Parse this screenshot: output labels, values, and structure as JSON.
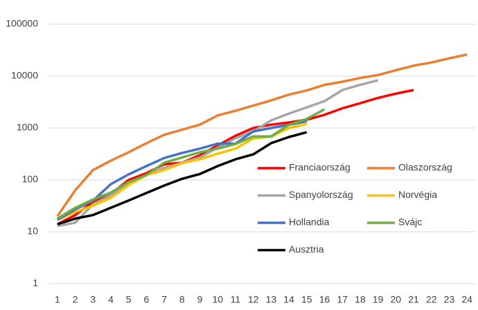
{
  "chart_data": {
    "type": "line",
    "categories": [
      "1",
      "2",
      "3",
      "4",
      "5",
      "6",
      "7",
      "8",
      "9",
      "10",
      "11",
      "12",
      "13",
      "14",
      "15",
      "16",
      "17",
      "18",
      "19",
      "20",
      "21",
      "22",
      "23",
      "24"
    ],
    "ylim": [
      1,
      100000
    ],
    "yticks": [
      1,
      10,
      100,
      1000,
      10000,
      100000
    ],
    "log_scale": true,
    "grid": true,
    "legend": "right",
    "series": [
      {
        "name": "Franciaország",
        "color": "#ff0000",
        "values": [
          14,
          21,
          38,
          54,
          100,
          135,
          200,
          215,
          300,
          460,
          710,
          1000,
          1160,
          1280,
          1450,
          1800,
          2400,
          3000,
          3800,
          4600,
          5400,
          null,
          null,
          null
        ]
      },
      {
        "name": "Olaszország",
        "color": "#ed7d31",
        "values": [
          20,
          63,
          155,
          235,
          340,
          510,
          740,
          930,
          1160,
          1750,
          2150,
          2700,
          3400,
          4400,
          5300,
          6800,
          7800,
          9200,
          10500,
          13000,
          15900,
          18300,
          22000,
          26000
        ]
      },
      {
        "name": "Spanyolország",
        "color": "#a5a5a5",
        "values": [
          13,
          15,
          34,
          51,
          86,
          124,
          170,
          215,
          270,
          420,
          630,
          860,
          1400,
          1900,
          2500,
          3300,
          5400,
          6800,
          8300,
          null,
          null,
          null,
          null,
          null
        ]
      },
      {
        "name": "Norvégia",
        "color": "#ffc000",
        "values": [
          17,
          24,
          32,
          45,
          80,
          124,
          155,
          210,
          250,
          320,
          400,
          630,
          680,
          1000,
          1200,
          null,
          null,
          null,
          null,
          null,
          null,
          null,
          null,
          null
        ]
      },
      {
        "name": "Hollandia",
        "color": "#4472c4",
        "values": [
          17,
          27,
          40,
          83,
          128,
          185,
          265,
          330,
          400,
          500,
          500,
          860,
          1000,
          1150,
          1350,
          null,
          null,
          null,
          null,
          null,
          null,
          null,
          null,
          null
        ]
      },
      {
        "name": "Svájc",
        "color": "#70ad47",
        "values": [
          18,
          29,
          42,
          57,
          91,
          124,
          215,
          270,
          340,
          400,
          490,
          690,
          690,
          1150,
          1500,
          2300,
          null,
          null,
          null,
          null,
          null,
          null,
          null,
          null
        ]
      },
      {
        "name": "Ausztria",
        "color": "#000000",
        "values": [
          14,
          18,
          21,
          29,
          40,
          56,
          78,
          105,
          130,
          185,
          250,
          310,
          510,
          670,
          830,
          null,
          null,
          null,
          null,
          null,
          null,
          null,
          null,
          null
        ]
      }
    ]
  }
}
